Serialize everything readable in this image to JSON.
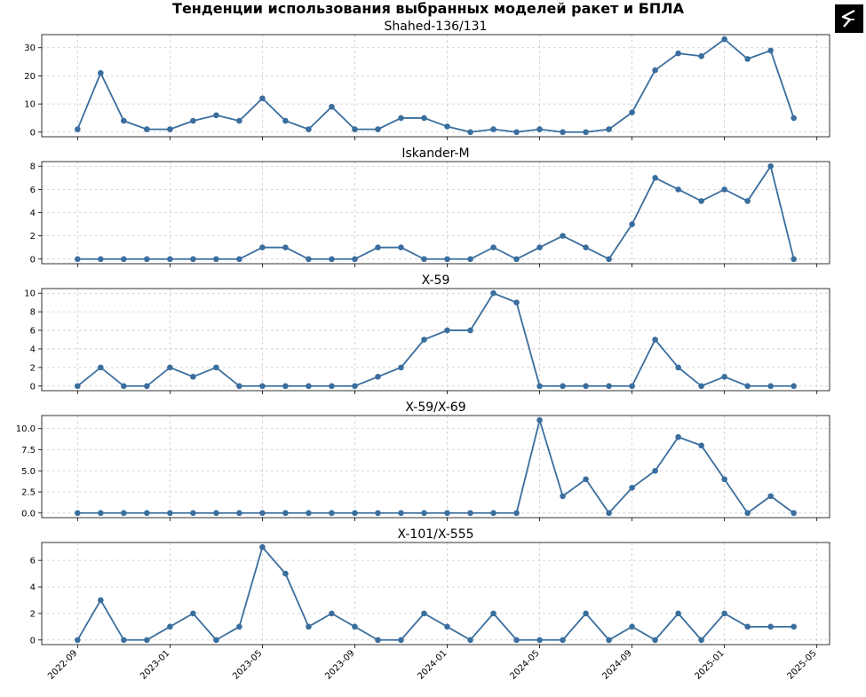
{
  "chart_data": {
    "type": "line",
    "title": "Тенденции использования выбранных моделей ракет и БПЛА",
    "x": [
      "2022-09",
      "2022-10",
      "2022-11",
      "2022-12",
      "2023-01",
      "2023-02",
      "2023-03",
      "2023-04",
      "2023-05",
      "2023-06",
      "2023-07",
      "2023-08",
      "2023-09",
      "2023-10",
      "2023-11",
      "2023-12",
      "2024-01",
      "2024-02",
      "2024-03",
      "2024-04",
      "2024-05",
      "2024-06",
      "2024-07",
      "2024-08",
      "2024-09",
      "2024-10",
      "2024-11",
      "2024-12",
      "2025-01",
      "2025-02",
      "2025-03",
      "2025-04"
    ],
    "xticks": [
      "2022-09",
      "2023-01",
      "2023-05",
      "2023-09",
      "2024-01",
      "2024-05",
      "2024-09",
      "2025-01",
      "2025-05"
    ],
    "grid": true,
    "color": "#3a6e9e",
    "panels": [
      {
        "name": "Shahed-136/131",
        "values": [
          1,
          21,
          4,
          1,
          1,
          4,
          6,
          4,
          12,
          4,
          1,
          9,
          1,
          1,
          5,
          5,
          2,
          0,
          1,
          0,
          1,
          0,
          0,
          1,
          7,
          22,
          28,
          27,
          33,
          26,
          29,
          5
        ],
        "ylim": [
          -1.65,
          34.65
        ],
        "yticks": [
          0,
          10,
          20,
          30
        ],
        "ytick_labels": [
          "0",
          "10",
          "20",
          "30"
        ]
      },
      {
        "name": "Iskander-M",
        "values": [
          0,
          0,
          0,
          0,
          0,
          0,
          0,
          0,
          1,
          1,
          0,
          0,
          0,
          1,
          1,
          0,
          0,
          0,
          1,
          0,
          1,
          2,
          1,
          0,
          3,
          7,
          6,
          5,
          6,
          5,
          8,
          0
        ],
        "ylim": [
          -0.4,
          8.4
        ],
        "yticks": [
          0,
          2,
          4,
          6,
          8
        ],
        "ytick_labels": [
          "0",
          "2",
          "4",
          "6",
          "8"
        ]
      },
      {
        "name": "X-59",
        "values": [
          0,
          2,
          0,
          0,
          2,
          1,
          2,
          0,
          0,
          0,
          0,
          0,
          0,
          1,
          2,
          5,
          6,
          6,
          10,
          9,
          0,
          0,
          0,
          0,
          0,
          5,
          2,
          0,
          1,
          0,
          0,
          0
        ],
        "ylim": [
          -0.5,
          10.5
        ],
        "yticks": [
          0,
          2,
          4,
          6,
          8,
          10
        ],
        "ytick_labels": [
          "0",
          "2",
          "4",
          "6",
          "8",
          "10"
        ]
      },
      {
        "name": "X-59/X-69",
        "values": [
          0,
          0,
          0,
          0,
          0,
          0,
          0,
          0,
          0,
          0,
          0,
          0,
          0,
          0,
          0,
          0,
          0,
          0,
          0,
          0,
          11,
          2,
          4,
          0,
          3,
          5,
          9,
          8,
          4,
          0,
          2,
          0
        ],
        "ylim": [
          -0.55,
          11.55
        ],
        "yticks": [
          0,
          2.5,
          5,
          7.5,
          10
        ],
        "ytick_labels": [
          "0.0",
          "2.5",
          "5.0",
          "7.5",
          "10.0"
        ]
      },
      {
        "name": "X-101/X-555",
        "values": [
          0,
          3,
          0,
          0,
          1,
          2,
          0,
          1,
          7,
          5,
          1,
          2,
          1,
          0,
          0,
          2,
          1,
          0,
          2,
          0,
          0,
          0,
          2,
          0,
          1,
          0,
          2,
          0,
          2,
          1,
          1,
          1
        ],
        "ylim": [
          -0.35,
          7.35
        ],
        "yticks": [
          0,
          2,
          4,
          6
        ],
        "ytick_labels": [
          "0",
          "2",
          "4",
          "6"
        ]
      }
    ]
  },
  "logo": {
    "icon": "stylized-s-logo-icon",
    "background": "#000000"
  }
}
